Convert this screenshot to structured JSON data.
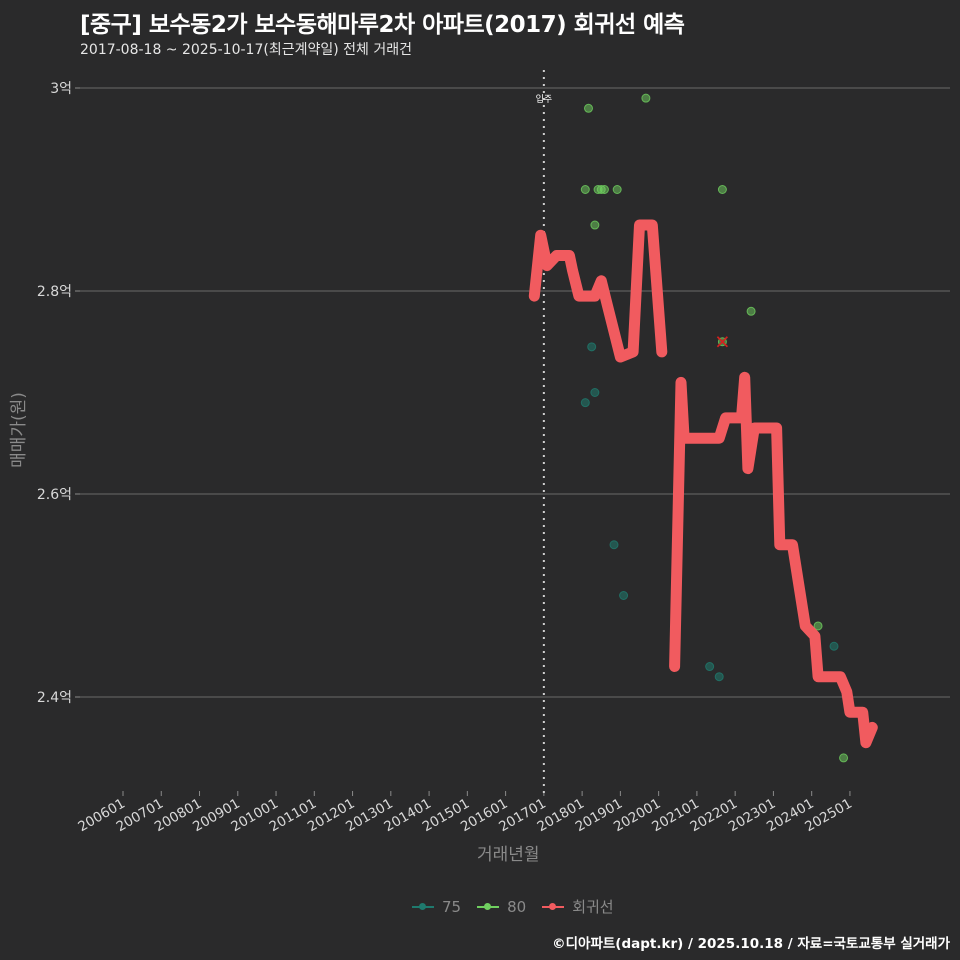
{
  "header": {
    "title": "[중구] 보수동2가 보수동해마루2차 아파트(2017) 회귀선 예측",
    "subtitle": "2017-08-18 ~ 2025-10-17(최근계약일) 전체 거래건"
  },
  "axes": {
    "ylabel": "매매가(원)",
    "xlabel": "거래년월",
    "yticks": [
      "3억",
      "2.8억",
      "2.6억",
      "2.4억"
    ],
    "xticks": [
      "200601",
      "200701",
      "200801",
      "200901",
      "201001",
      "201101",
      "201201",
      "201301",
      "201401",
      "201501",
      "201601",
      "201701",
      "201801",
      "201901",
      "202001",
      "202101",
      "202201",
      "202301",
      "202401",
      "202501"
    ],
    "annotation": "입주"
  },
  "legend": {
    "items": [
      {
        "label": "75",
        "color": "#1f7a6e"
      },
      {
        "label": "80",
        "color": "#6fcf5f"
      },
      {
        "label": "회귀선",
        "color": "#f15b5f"
      }
    ]
  },
  "footer": {
    "credit": "©디아파트(dapt.kr) / 2025.10.18 / 자료=국토교통부 실거래가"
  },
  "chart_data": {
    "type": "scatter",
    "title": "[중구] 보수동2가 보수동해마루2차 아파트(2017) 회귀선 예측",
    "subtitle": "2017-08-18 ~ 2025-10-17(최근계약일) 전체 거래건",
    "xlabel": "거래년월",
    "ylabel": "매매가(원)",
    "x_range": [
      "2006-01",
      "2025-10"
    ],
    "ylim": [
      2.31,
      3.02
    ],
    "y_unit": "억",
    "grid": true,
    "legend_position": "bottom",
    "vline": {
      "x": "2017-01",
      "label": "입주"
    },
    "series": [
      {
        "name": "75",
        "type": "scatter",
        "color": "#1f7a6e",
        "points": [
          {
            "x": "2018-04",
            "y": 2.745
          },
          {
            "x": "2018-05",
            "y": 2.7
          },
          {
            "x": "2018-02",
            "y": 2.69
          },
          {
            "x": "2018-11",
            "y": 2.55
          },
          {
            "x": "2019-02",
            "y": 2.5
          },
          {
            "x": "2021-05",
            "y": 2.43
          },
          {
            "x": "2021-08",
            "y": 2.42
          },
          {
            "x": "2024-08",
            "y": 2.45
          }
        ]
      },
      {
        "name": "80",
        "type": "scatter",
        "color": "#6fcf5f",
        "points": [
          {
            "x": "2018-03",
            "y": 2.98
          },
          {
            "x": "2019-09",
            "y": 2.99
          },
          {
            "x": "2018-02",
            "y": 2.9
          },
          {
            "x": "2018-06",
            "y": 2.9
          },
          {
            "x": "2018-07",
            "y": 2.9
          },
          {
            "x": "2018-08",
            "y": 2.9
          },
          {
            "x": "2018-12",
            "y": 2.9
          },
          {
            "x": "2021-09",
            "y": 2.9
          },
          {
            "x": "2018-05",
            "y": 2.865
          },
          {
            "x": "2021-09",
            "y": 2.75,
            "marker": "x"
          },
          {
            "x": "2022-06",
            "y": 2.78
          },
          {
            "x": "2024-03",
            "y": 2.47
          },
          {
            "x": "2024-11",
            "y": 2.34
          }
        ]
      },
      {
        "name": "회귀선",
        "type": "line",
        "color": "#f15b5f",
        "points": [
          {
            "x": "2016-10",
            "y": 2.795
          },
          {
            "x": "2016-12",
            "y": 2.855
          },
          {
            "x": "2017-02",
            "y": 2.825
          },
          {
            "x": "2017-05",
            "y": 2.835
          },
          {
            "x": "2017-09",
            "y": 2.835
          },
          {
            "x": "2017-10",
            "y": 2.82
          },
          {
            "x": "2017-12",
            "y": 2.795
          },
          {
            "x": "2018-05",
            "y": 2.795
          },
          {
            "x": "2018-07",
            "y": 2.81
          },
          {
            "x": "2018-09",
            "y": 2.785
          },
          {
            "x": "2019-01",
            "y": 2.735
          },
          {
            "x": "2019-05",
            "y": 2.74
          },
          {
            "x": "2019-07",
            "y": 2.865
          },
          {
            "x": "2019-11",
            "y": 2.865
          },
          {
            "x": "2020-02",
            "y": 2.74
          },
          {
            "x": "2020-06",
            "y": 2.43
          },
          {
            "x": "2020-08",
            "y": 2.71
          },
          {
            "x": "2020-09",
            "y": 2.655
          },
          {
            "x": "2021-08",
            "y": 2.655
          },
          {
            "x": "2021-10",
            "y": 2.675
          },
          {
            "x": "2022-03",
            "y": 2.675
          },
          {
            "x": "2022-04",
            "y": 2.715
          },
          {
            "x": "2022-05",
            "y": 2.625
          },
          {
            "x": "2022-07",
            "y": 2.665
          },
          {
            "x": "2023-02",
            "y": 2.665
          },
          {
            "x": "2023-03",
            "y": 2.55
          },
          {
            "x": "2023-07",
            "y": 2.55
          },
          {
            "x": "2023-09",
            "y": 2.51
          },
          {
            "x": "2023-11",
            "y": 2.47
          },
          {
            "x": "2024-02",
            "y": 2.46
          },
          {
            "x": "2024-03",
            "y": 2.42
          },
          {
            "x": "2024-10",
            "y": 2.42
          },
          {
            "x": "2024-12",
            "y": 2.405
          },
          {
            "x": "2025-01",
            "y": 2.385
          },
          {
            "x": "2025-05",
            "y": 2.385
          },
          {
            "x": "2025-06",
            "y": 2.355
          },
          {
            "x": "2025-08",
            "y": 2.37
          }
        ]
      }
    ]
  }
}
